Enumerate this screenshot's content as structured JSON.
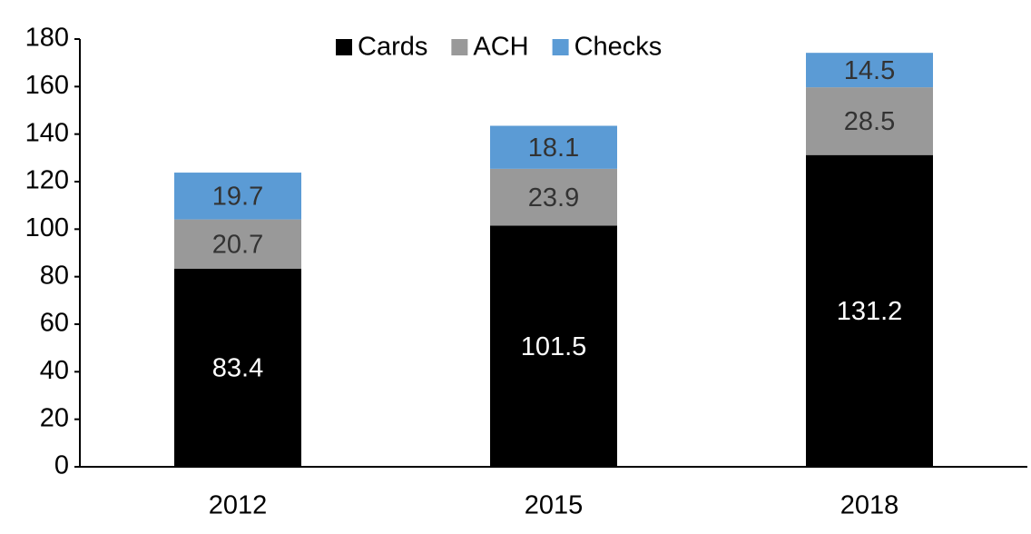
{
  "chart_data": {
    "type": "stacked_bar",
    "categories": [
      "2012",
      "2015",
      "2018"
    ],
    "series": [
      {
        "name": "Cards",
        "color": "#000000",
        "label_color": "#ffffff",
        "values": [
          83.4,
          101.5,
          131.2
        ]
      },
      {
        "name": "ACH",
        "color": "#999999",
        "label_color": "#333333",
        "values": [
          20.7,
          23.9,
          28.5
        ]
      },
      {
        "name": "Checks",
        "color": "#5b9bd5",
        "label_color": "#333333",
        "values": [
          19.7,
          18.1,
          14.5
        ]
      }
    ],
    "ylim": [
      0,
      180
    ],
    "yticks": [
      0,
      20,
      40,
      60,
      80,
      100,
      120,
      140,
      160,
      180
    ],
    "grid": false,
    "legend": "top"
  }
}
